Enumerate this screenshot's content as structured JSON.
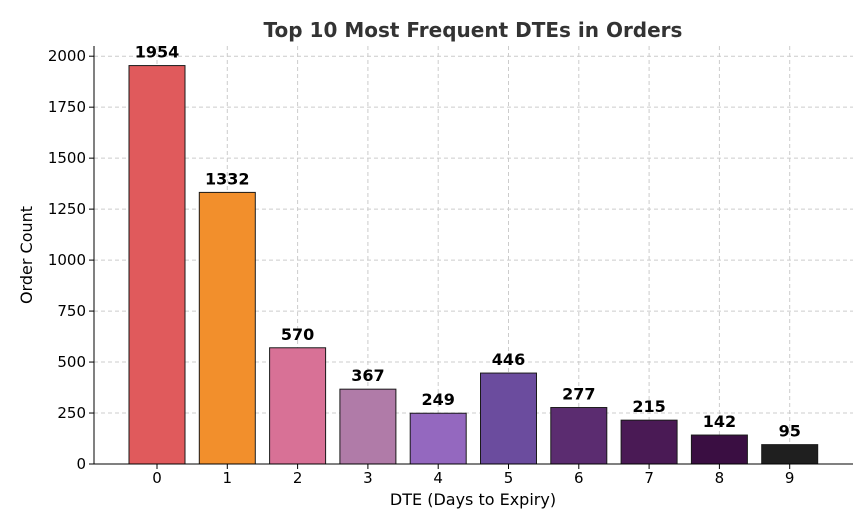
{
  "chart_data": {
    "type": "bar",
    "title": "Top 10 Most Frequent DTEs in Orders",
    "xlabel": "DTE (Days to Expiry)",
    "ylabel": "Order Count",
    "categories": [
      "0",
      "1",
      "2",
      "3",
      "4",
      "5",
      "6",
      "7",
      "8",
      "9"
    ],
    "values": [
      1954,
      1332,
      570,
      367,
      249,
      446,
      277,
      215,
      142,
      95
    ],
    "value_labels": [
      "1954",
      "1332",
      "570",
      "367",
      "249",
      "446",
      "277",
      "215",
      "142",
      "95"
    ],
    "colors": [
      "#e05a5c",
      "#f28f2c",
      "#d87196",
      "#b07ba8",
      "#9468bf",
      "#6b4c9e",
      "#5b2c70",
      "#4a1a55",
      "#3a0e42",
      "#1f1f1f"
    ],
    "ylim": [
      0,
      2050
    ],
    "yticks": [
      0,
      250,
      500,
      750,
      1000,
      1250,
      1500,
      1750,
      2000
    ],
    "ytick_labels": [
      "0",
      "250",
      "500",
      "750",
      "1000",
      "1250",
      "1500",
      "1750",
      "2000"
    ],
    "grid": true
  }
}
